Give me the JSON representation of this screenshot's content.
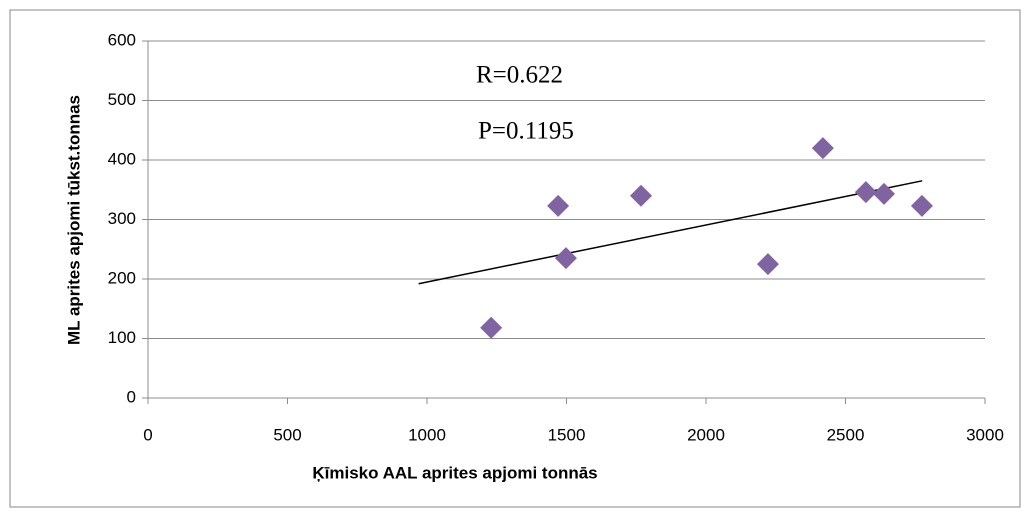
{
  "chart_data": {
    "type": "scatter",
    "x_label": "Ķīmisko AAL aprites apjomi tonnās",
    "y_label": "ML aprites apjomi tūkst.tonnas",
    "annotations": [
      "R=0.622",
      "P=0.1195"
    ],
    "series": [
      {
        "color": "#8064a2",
        "x": [
          1230,
          1470,
          1498,
          1767,
          2222,
          2419,
          2573,
          2638,
          2774
        ],
        "values": [
          118,
          323,
          235,
          340,
          225,
          420,
          346,
          343,
          323
        ]
      }
    ],
    "trendline": {
      "color": "#000000",
      "x": [
        970,
        2775
      ],
      "values": [
        192,
        365
      ]
    },
    "xlim": [
      0,
      3000
    ],
    "xticks": [
      0,
      500,
      1000,
      1500,
      2000,
      2500,
      3000
    ],
    "ylim": [
      0,
      600
    ],
    "yticks": [
      0,
      100,
      200,
      300,
      400,
      500,
      600
    ],
    "grid": true
  }
}
